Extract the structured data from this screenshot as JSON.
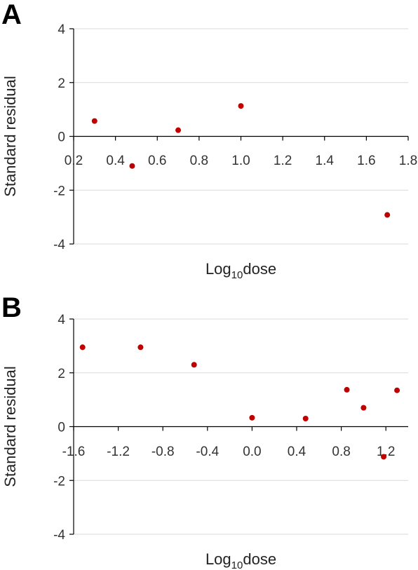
{
  "chart_data": [
    {
      "type": "scatter",
      "panel_label": "A",
      "xlabel_main": "Log",
      "xlabel_sub": "10",
      "xlabel_tail": "dose",
      "ylabel": "Standard residual",
      "xlim": [
        0.2,
        1.8
      ],
      "ylim": [
        -4,
        4
      ],
      "xticks": [
        0.2,
        0.4,
        0.6,
        0.8,
        1.0,
        1.2,
        1.4,
        1.6,
        1.8
      ],
      "xtick_labels": [
        "0.2",
        "0.4",
        "0.6",
        "0.8",
        "1.0",
        "1.2",
        "1.4",
        "1.6",
        "1.8"
      ],
      "yticks": [
        -4,
        -2,
        0,
        2,
        4
      ],
      "ytick_labels": [
        "-4",
        "-2",
        "0",
        "2",
        "4"
      ],
      "grid": true,
      "marker_color": "#c00000",
      "points": [
        {
          "x": 0.3,
          "y": 0.57
        },
        {
          "x": 0.48,
          "y": -1.1
        },
        {
          "x": 0.7,
          "y": 0.23
        },
        {
          "x": 1.0,
          "y": 1.13
        },
        {
          "x": 1.7,
          "y": -2.92
        }
      ]
    },
    {
      "type": "scatter",
      "panel_label": "B",
      "xlabel_main": "Log",
      "xlabel_sub": "10",
      "xlabel_tail": "dose",
      "ylabel": "Standard residual",
      "xlim": [
        -1.6,
        1.4
      ],
      "ylim": [
        -4,
        4
      ],
      "xticks": [
        -1.6,
        -1.2,
        -0.8,
        -0.4,
        0.0,
        0.4,
        0.8,
        1.2
      ],
      "xtick_labels": [
        "-1.6",
        "-1.2",
        "-0.8",
        "-0.4",
        "0.0",
        "0.4",
        "0.8",
        "1.2"
      ],
      "yticks": [
        -4,
        -2,
        0,
        2,
        4
      ],
      "ytick_labels": [
        "-4",
        "-2",
        "0",
        "2",
        "4"
      ],
      "grid": true,
      "marker_color": "#c00000",
      "points": [
        {
          "x": -1.52,
          "y": 2.95
        },
        {
          "x": -1.0,
          "y": 2.95
        },
        {
          "x": -0.52,
          "y": 2.3
        },
        {
          "x": 0.0,
          "y": 0.33
        },
        {
          "x": 0.48,
          "y": 0.3
        },
        {
          "x": 0.85,
          "y": 1.37
        },
        {
          "x": 1.0,
          "y": 0.7
        },
        {
          "x": 1.18,
          "y": -1.12
        },
        {
          "x": 1.3,
          "y": 1.35
        }
      ]
    }
  ]
}
